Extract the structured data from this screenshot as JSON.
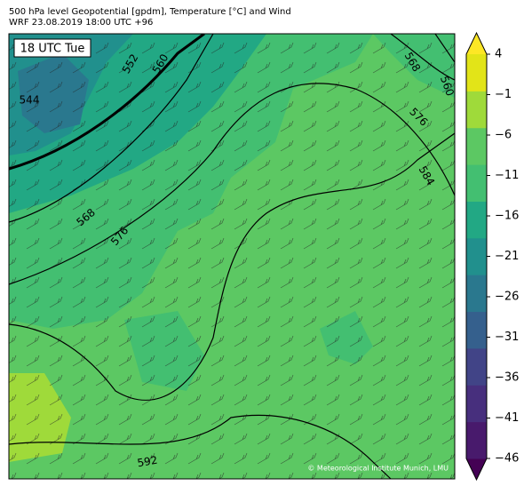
{
  "header": {
    "title": "500 hPa level Geopotential [gpdm], Temperature [°C] and Wind",
    "subtitle": "WRF 23.08.2019 18:00 UTC +96"
  },
  "map": {
    "time_label": "18 UTC Tue",
    "contour_labels": [
      544,
      552,
      560,
      568,
      560,
      576,
      584,
      568,
      576,
      592
    ],
    "credit": "© Meteorological Institute Munich, LMU"
  },
  "colorbar": {
    "ticks": [
      4,
      {
        "value": -1,
        "label": "−1"
      },
      {
        "value": -6,
        "label": "−6"
      },
      {
        "value": -11,
        "label": "−11"
      },
      {
        "value": -16,
        "label": "−16"
      },
      {
        "value": -21,
        "label": "−21"
      },
      {
        "value": -26,
        "label": "−26"
      },
      {
        "value": -31,
        "label": "−31"
      },
      {
        "value": -36,
        "label": "−36"
      },
      {
        "value": -41,
        "label": "−41"
      },
      {
        "value": -46,
        "label": "−46"
      }
    ],
    "colors": [
      "#440154",
      "#481a6c",
      "#472f7d",
      "#414487",
      "#35608d",
      "#2a788e",
      "#21908d",
      "#22a884",
      "#43bf71",
      "#5cc863",
      "#9fda3a",
      "#e2e418",
      "#fde725"
    ]
  }
}
